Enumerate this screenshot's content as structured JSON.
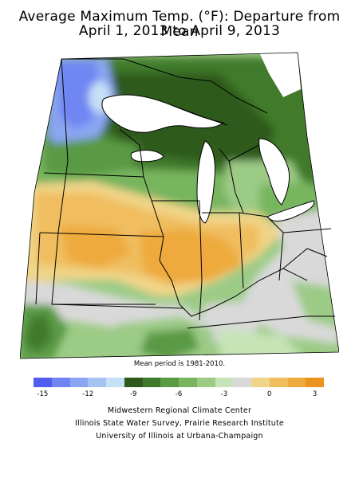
{
  "title_line1": "Average Maximum Temp. (°F): Departure from Mean",
  "title_line2": "April 1, 2013 to April 9, 2013",
  "period_note": "Mean period is 1981-2010.",
  "legend": {
    "colors": [
      "#4f5df0",
      "#6f86f2",
      "#8aa6f2",
      "#a4c2f2",
      "#c6e0f5",
      "#2d5a1c",
      "#3f7a2c",
      "#5a9a44",
      "#78b55e",
      "#9ccb86",
      "#c6e4b6",
      "#d9d9d9",
      "#f0d488",
      "#f0bd5e",
      "#eeaa3e",
      "#ec9420"
    ],
    "tick_labels": [
      "-15",
      "-12",
      "-9",
      "-6",
      "-3",
      "0",
      "3"
    ]
  },
  "credits": [
    "Midwestern Regional Climate Center",
    "Illinois State Water Survey, Prairie Research Institute",
    "University of Illinois at Urbana-Champaign"
  ]
}
